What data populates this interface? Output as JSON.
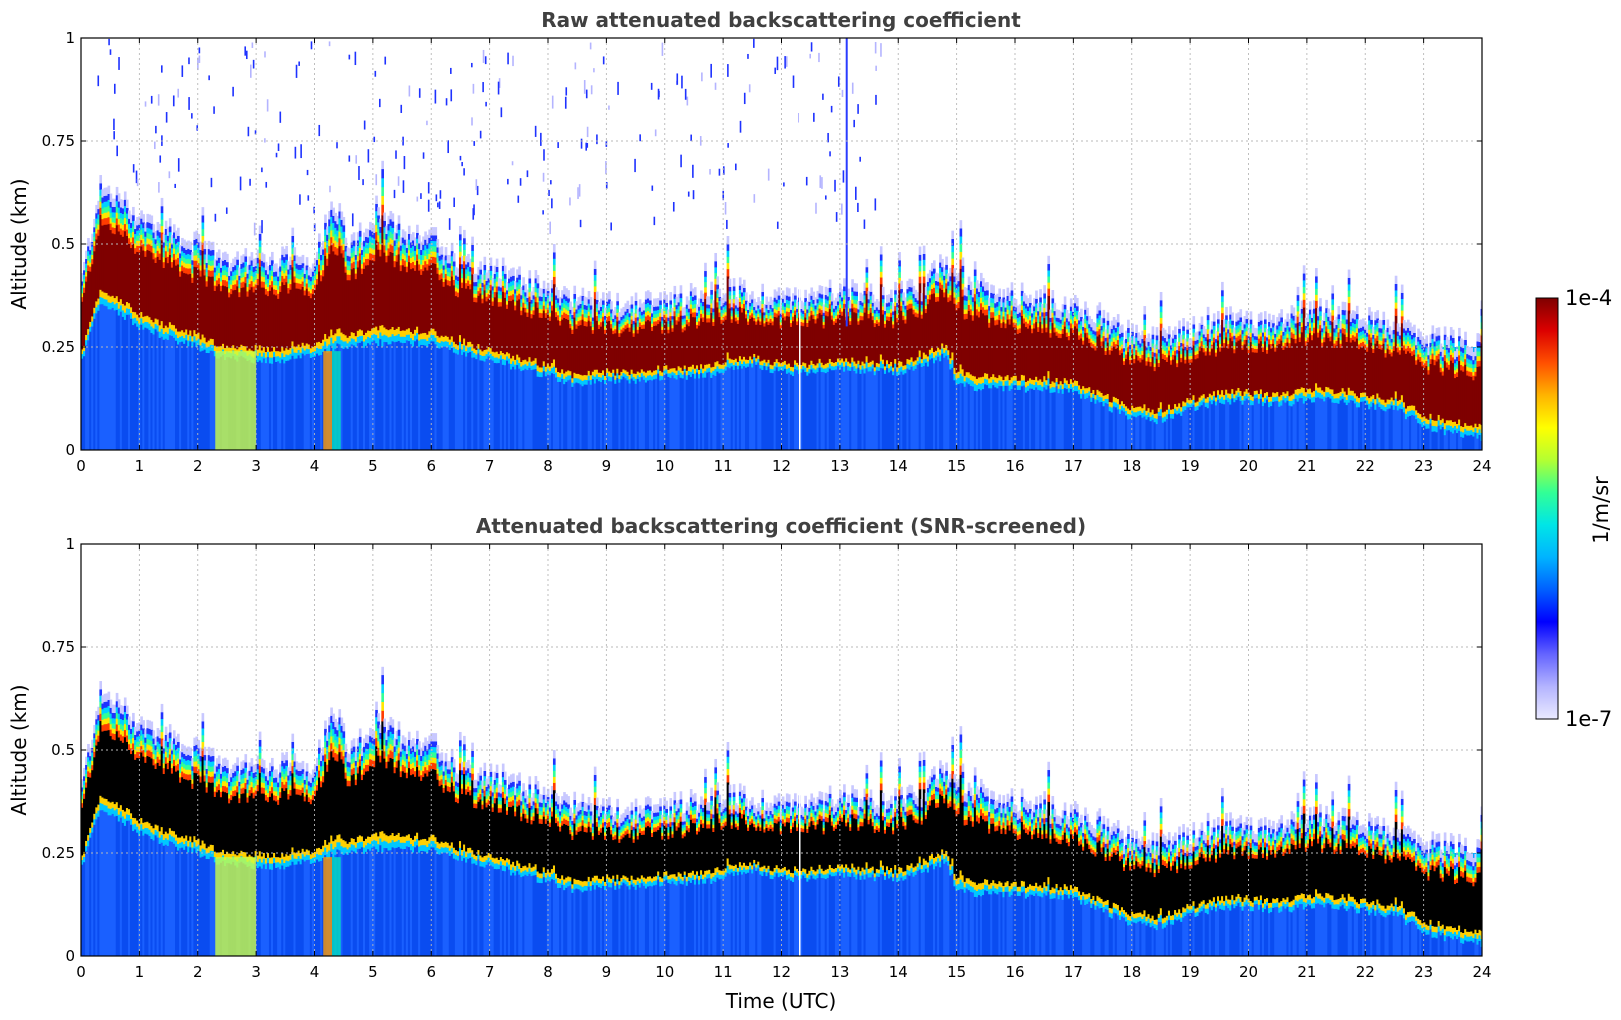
{
  "chart_data": [
    {
      "type": "heatmap",
      "panel": "raw",
      "title": "Raw attenuated backscattering coefficient",
      "xlabel": "",
      "ylabel": "Altitude (km)",
      "xlim": [
        0,
        24
      ],
      "ylim": [
        0,
        1
      ],
      "x_ticks": [
        "0",
        "1",
        "2",
        "3",
        "4",
        "5",
        "6",
        "7",
        "8",
        "9",
        "10",
        "11",
        "12",
        "13",
        "14",
        "15",
        "16",
        "17",
        "18",
        "19",
        "20",
        "21",
        "22",
        "23",
        "24"
      ],
      "y_ticks": [
        {
          "value": 0,
          "label": "0"
        },
        {
          "value": 0.25,
          "label": "0.25"
        },
        {
          "value": 0.5,
          "label": "0.5"
        },
        {
          "value": 0.75,
          "label": "0.75"
        },
        {
          "value": 1,
          "label": "1"
        }
      ],
      "grid": true,
      "saturated_color": "#7f0000",
      "profile": {
        "time_utc": [
          0,
          0.3,
          0.6,
          1,
          1.5,
          2,
          2.5,
          3,
          3.5,
          4,
          4.3,
          4.6,
          5,
          5.5,
          6,
          6.5,
          7,
          7.5,
          8,
          8.5,
          9,
          9.5,
          10,
          10.5,
          11,
          11.5,
          12,
          12.5,
          13,
          13.5,
          14,
          14.5,
          14.8,
          15,
          15.5,
          16,
          16.5,
          17,
          17.5,
          18,
          18.3,
          18.6,
          19,
          19.5,
          20,
          20.5,
          21,
          21.5,
          22,
          22.5,
          23,
          23.5,
          24
        ],
        "layer_top_km": [
          0.4,
          0.62,
          0.6,
          0.55,
          0.52,
          0.48,
          0.45,
          0.45,
          0.45,
          0.45,
          0.6,
          0.48,
          0.55,
          0.52,
          0.5,
          0.44,
          0.42,
          0.4,
          0.38,
          0.35,
          0.34,
          0.34,
          0.35,
          0.36,
          0.38,
          0.36,
          0.36,
          0.35,
          0.38,
          0.36,
          0.36,
          0.4,
          0.44,
          0.4,
          0.38,
          0.36,
          0.35,
          0.34,
          0.3,
          0.26,
          0.25,
          0.26,
          0.28,
          0.3,
          0.3,
          0.29,
          0.32,
          0.32,
          0.3,
          0.28,
          0.26,
          0.25,
          0.24
        ],
        "layer_base_km": [
          0.22,
          0.35,
          0.34,
          0.3,
          0.27,
          0.25,
          0.22,
          0.22,
          0.22,
          0.23,
          0.25,
          0.25,
          0.26,
          0.26,
          0.26,
          0.24,
          0.22,
          0.2,
          0.18,
          0.16,
          0.17,
          0.17,
          0.18,
          0.18,
          0.19,
          0.21,
          0.19,
          0.19,
          0.2,
          0.19,
          0.19,
          0.21,
          0.23,
          0.16,
          0.15,
          0.15,
          0.15,
          0.14,
          0.11,
          0.08,
          0.07,
          0.08,
          0.1,
          0.12,
          0.12,
          0.11,
          0.12,
          0.12,
          0.11,
          0.1,
          0.06,
          0.04,
          0.03
        ]
      },
      "notes": [
        "sparse noise pixels above the layer"
      ]
    },
    {
      "type": "heatmap",
      "panel": "screened",
      "title": "Attenuated backscattering coefficient (SNR-screened)",
      "xlabel": "Time (UTC)",
      "ylabel": "Altitude (km)",
      "xlim": [
        0,
        24
      ],
      "ylim": [
        0,
        1
      ],
      "x_ticks": [
        "0",
        "1",
        "2",
        "3",
        "4",
        "5",
        "6",
        "7",
        "8",
        "9",
        "10",
        "11",
        "12",
        "13",
        "14",
        "15",
        "16",
        "17",
        "18",
        "19",
        "20",
        "21",
        "22",
        "23",
        "24"
      ],
      "y_ticks": [
        {
          "value": 0,
          "label": "0"
        },
        {
          "value": 0.25,
          "label": "0.25"
        },
        {
          "value": 0.5,
          "label": "0.5"
        },
        {
          "value": 0.75,
          "label": "0.75"
        },
        {
          "value": 1,
          "label": "1"
        }
      ],
      "grid": true,
      "saturated_color": "#000000",
      "profile": {
        "time_utc": [
          0,
          0.3,
          0.6,
          1,
          1.5,
          2,
          2.5,
          3,
          3.5,
          4,
          4.3,
          4.6,
          5,
          5.5,
          6,
          6.5,
          7,
          7.5,
          8,
          8.5,
          9,
          9.5,
          10,
          10.5,
          11,
          11.5,
          12,
          12.5,
          13,
          13.5,
          14,
          14.5,
          14.8,
          15,
          15.5,
          16,
          16.5,
          17,
          17.5,
          18,
          18.3,
          18.6,
          19,
          19.5,
          20,
          20.5,
          21,
          21.5,
          22,
          22.5,
          23,
          23.5,
          24
        ],
        "layer_top_km": [
          0.4,
          0.62,
          0.6,
          0.55,
          0.52,
          0.48,
          0.45,
          0.45,
          0.45,
          0.45,
          0.6,
          0.48,
          0.55,
          0.52,
          0.5,
          0.44,
          0.42,
          0.4,
          0.38,
          0.35,
          0.34,
          0.34,
          0.35,
          0.36,
          0.38,
          0.36,
          0.36,
          0.35,
          0.38,
          0.36,
          0.36,
          0.4,
          0.44,
          0.4,
          0.38,
          0.36,
          0.35,
          0.34,
          0.3,
          0.26,
          0.25,
          0.26,
          0.28,
          0.3,
          0.3,
          0.29,
          0.32,
          0.32,
          0.3,
          0.28,
          0.26,
          0.25,
          0.24
        ],
        "layer_base_km": [
          0.22,
          0.35,
          0.34,
          0.3,
          0.27,
          0.25,
          0.22,
          0.22,
          0.22,
          0.23,
          0.25,
          0.25,
          0.26,
          0.26,
          0.26,
          0.24,
          0.22,
          0.2,
          0.18,
          0.16,
          0.17,
          0.17,
          0.18,
          0.18,
          0.19,
          0.21,
          0.19,
          0.19,
          0.2,
          0.19,
          0.19,
          0.21,
          0.23,
          0.16,
          0.15,
          0.15,
          0.15,
          0.14,
          0.11,
          0.08,
          0.07,
          0.08,
          0.1,
          0.12,
          0.12,
          0.11,
          0.12,
          0.12,
          0.11,
          0.1,
          0.06,
          0.04,
          0.03
        ]
      },
      "notes": [
        "noise above layer removed"
      ]
    }
  ],
  "colorbar": {
    "label": "1/m/sr",
    "max_label": "1e-4",
    "min_label": "1e-7",
    "scale": "log",
    "range": [
      1e-07,
      0.0001
    ],
    "colors": [
      "#eaeaff",
      "#b4b4ff",
      "#6464ff",
      "#0000ff",
      "#0060ff",
      "#00b4ff",
      "#00e6e6",
      "#32ff96",
      "#b4ff32",
      "#ffff00",
      "#ffb400",
      "#ff5000",
      "#dc0000",
      "#7f0000"
    ]
  }
}
